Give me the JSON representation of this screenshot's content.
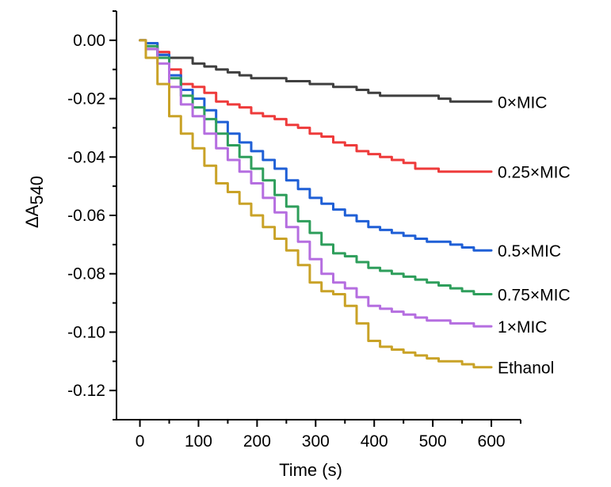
{
  "chart_data": {
    "type": "line",
    "title": "",
    "xlabel": "Time (s)",
    "ylabel": "ΔA",
    "ylabel_sub": "540",
    "xlim": [
      -40,
      650
    ],
    "ylim": [
      -0.13,
      0.01
    ],
    "xticks": [
      0,
      100,
      200,
      300,
      400,
      500,
      600
    ],
    "xtick_labels": [
      "0",
      "100",
      "200",
      "300",
      "400",
      "500",
      "600"
    ],
    "yticks": [
      0.0,
      -0.02,
      -0.04,
      -0.06,
      -0.08,
      -0.1,
      -0.12
    ],
    "ytick_labels": [
      "0.00",
      "-0.02",
      "-0.04",
      "-0.06",
      "-0.08",
      "-0.10",
      "-0.12"
    ],
    "grid": false,
    "legend": "inline-right",
    "series": [
      {
        "name": "0×MIC",
        "color": "#3f3f3f",
        "x": [
          0,
          20,
          40,
          60,
          80,
          100,
          120,
          140,
          160,
          180,
          200,
          220,
          240,
          260,
          280,
          300,
          320,
          340,
          360,
          380,
          400,
          420,
          440,
          460,
          480,
          500,
          520,
          540,
          560,
          580,
          600
        ],
        "y": [
          0,
          -0.003,
          -0.005,
          -0.006,
          -0.006,
          -0.008,
          -0.009,
          -0.01,
          -0.011,
          -0.012,
          -0.013,
          -0.013,
          -0.013,
          -0.014,
          -0.014,
          -0.015,
          -0.015,
          -0.016,
          -0.016,
          -0.017,
          -0.018,
          -0.019,
          -0.019,
          -0.019,
          -0.019,
          -0.019,
          -0.02,
          -0.021,
          -0.021,
          -0.021,
          -0.021
        ]
      },
      {
        "name": "0.25×MIC",
        "color": "#ee3b3b",
        "x": [
          0,
          20,
          40,
          60,
          80,
          100,
          120,
          140,
          160,
          180,
          200,
          220,
          240,
          260,
          280,
          300,
          320,
          340,
          360,
          380,
          400,
          420,
          440,
          460,
          480,
          500,
          520,
          540,
          560,
          580,
          600
        ],
        "y": [
          0,
          -0.001,
          -0.004,
          -0.01,
          -0.015,
          -0.016,
          -0.018,
          -0.021,
          -0.022,
          -0.023,
          -0.025,
          -0.026,
          -0.027,
          -0.029,
          -0.03,
          -0.032,
          -0.033,
          -0.035,
          -0.036,
          -0.038,
          -0.039,
          -0.04,
          -0.041,
          -0.042,
          -0.044,
          -0.044,
          -0.045,
          -0.045,
          -0.045,
          -0.045,
          -0.045
        ]
      },
      {
        "name": "0.5×MIC",
        "color": "#1f5fd6",
        "x": [
          0,
          20,
          40,
          60,
          80,
          100,
          120,
          140,
          160,
          180,
          200,
          220,
          240,
          260,
          280,
          300,
          320,
          340,
          360,
          380,
          400,
          420,
          440,
          460,
          480,
          500,
          520,
          540,
          560,
          580,
          600
        ],
        "y": [
          0,
          -0.001,
          -0.005,
          -0.012,
          -0.017,
          -0.02,
          -0.024,
          -0.028,
          -0.032,
          -0.035,
          -0.038,
          -0.041,
          -0.044,
          -0.048,
          -0.051,
          -0.054,
          -0.056,
          -0.058,
          -0.06,
          -0.062,
          -0.064,
          -0.065,
          -0.066,
          -0.067,
          -0.068,
          -0.069,
          -0.069,
          -0.07,
          -0.071,
          -0.072,
          -0.072
        ]
      },
      {
        "name": "0.75×MIC",
        "color": "#2e9e5b",
        "x": [
          0,
          20,
          40,
          60,
          80,
          100,
          120,
          140,
          160,
          180,
          200,
          220,
          240,
          260,
          280,
          300,
          320,
          340,
          360,
          380,
          400,
          420,
          440,
          460,
          480,
          500,
          520,
          540,
          560,
          580,
          600
        ],
        "y": [
          0,
          -0.002,
          -0.006,
          -0.013,
          -0.019,
          -0.023,
          -0.027,
          -0.032,
          -0.036,
          -0.04,
          -0.044,
          -0.048,
          -0.053,
          -0.057,
          -0.062,
          -0.066,
          -0.07,
          -0.073,
          -0.074,
          -0.076,
          -0.078,
          -0.079,
          -0.08,
          -0.081,
          -0.082,
          -0.083,
          -0.084,
          -0.085,
          -0.086,
          -0.087,
          -0.087
        ]
      },
      {
        "name": "1×MIC",
        "color": "#b56ee0",
        "x": [
          0,
          20,
          40,
          60,
          80,
          100,
          120,
          140,
          160,
          180,
          200,
          220,
          240,
          260,
          280,
          300,
          320,
          340,
          360,
          380,
          400,
          420,
          440,
          460,
          480,
          500,
          520,
          540,
          560,
          580,
          600
        ],
        "y": [
          0,
          -0.003,
          -0.008,
          -0.016,
          -0.022,
          -0.026,
          -0.032,
          -0.037,
          -0.041,
          -0.045,
          -0.049,
          -0.054,
          -0.059,
          -0.064,
          -0.069,
          -0.075,
          -0.08,
          -0.083,
          -0.085,
          -0.088,
          -0.091,
          -0.092,
          -0.093,
          -0.094,
          -0.095,
          -0.096,
          -0.096,
          -0.097,
          -0.097,
          -0.098,
          -0.098
        ]
      },
      {
        "name": "Ethanol",
        "color": "#c9a227",
        "x": [
          0,
          20,
          40,
          60,
          80,
          100,
          120,
          140,
          160,
          180,
          200,
          220,
          240,
          260,
          280,
          300,
          320,
          340,
          360,
          380,
          400,
          420,
          440,
          460,
          480,
          500,
          520,
          540,
          560,
          580,
          600
        ],
        "y": [
          0,
          -0.006,
          -0.015,
          -0.026,
          -0.032,
          -0.037,
          -0.043,
          -0.049,
          -0.052,
          -0.056,
          -0.06,
          -0.064,
          -0.068,
          -0.072,
          -0.077,
          -0.083,
          -0.086,
          -0.087,
          -0.091,
          -0.097,
          -0.103,
          -0.105,
          -0.106,
          -0.107,
          -0.108,
          -0.109,
          -0.11,
          -0.11,
          -0.111,
          -0.112,
          -0.112
        ]
      }
    ]
  }
}
